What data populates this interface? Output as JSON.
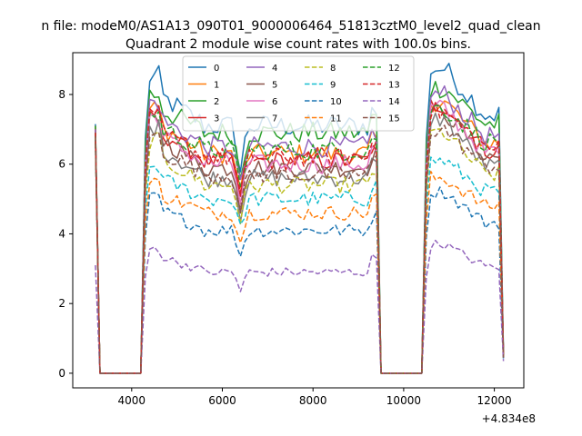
{
  "figure": {
    "suptitle": "n file: modeM0/AS1A13_090T01_9000006464_51813cztM0_level2_quad_clean",
    "offset_label": "+4.834e8"
  },
  "chart_data": {
    "type": "line",
    "title": "Quadrant 2 module wise count rates with 100.0s bins.",
    "xlabel": "",
    "ylabel": "",
    "xlim": [
      2700,
      12650
    ],
    "ylim": [
      -0.42,
      9.2
    ],
    "x_offset": 483400000,
    "xticks": [
      4000,
      6000,
      8000,
      10000,
      12000
    ],
    "xtick_labels": [
      "4000",
      "6000",
      "8000",
      "10000",
      "12000"
    ],
    "yticks": [
      0,
      2,
      4,
      6,
      8
    ],
    "ytick_labels": [
      "0",
      "2",
      "4",
      "6",
      "8"
    ],
    "grid": false,
    "legend": {
      "placement": "upper-center",
      "columns": 4
    },
    "segments": [
      [
        3200,
        12200
      ]
    ],
    "gaps": [
      [
        3300,
        4200
      ],
      [
        9500,
        10400
      ]
    ],
    "series": [
      {
        "name": "0",
        "color": "#1f77b4",
        "dash": "solid",
        "level": 7.1,
        "start": 7.15,
        "peak": 8.75,
        "end": 0.6
      },
      {
        "name": "1",
        "color": "#ff7f0e",
        "dash": "solid",
        "level": 6.3,
        "start": 7.1,
        "peak": 7.8,
        "end": 0.5
      },
      {
        "name": "2",
        "color": "#2ca02c",
        "dash": "solid",
        "level": 6.9,
        "start": 7.1,
        "peak": 8.2,
        "end": 0.55
      },
      {
        "name": "3",
        "color": "#d62728",
        "dash": "solid",
        "level": 6.1,
        "start": 7.0,
        "peak": 7.7,
        "end": 0.5
      },
      {
        "name": "4",
        "color": "#9467bd",
        "dash": "solid",
        "level": 6.5,
        "start": 7.0,
        "peak": 8.0,
        "end": 0.5
      },
      {
        "name": "5",
        "color": "#8c564b",
        "dash": "solid",
        "level": 5.9,
        "start": 6.9,
        "peak": 7.5,
        "end": 0.5
      },
      {
        "name": "6",
        "color": "#e377c2",
        "dash": "solid",
        "level": 6.0,
        "start": 6.9,
        "peak": 7.6,
        "end": 0.5
      },
      {
        "name": "7",
        "color": "#7f7f7f",
        "dash": "solid",
        "level": 5.6,
        "start": 6.8,
        "peak": 7.3,
        "end": 0.45
      },
      {
        "name": "8",
        "color": "#bcbd22",
        "dash": "dashed",
        "level": 5.4,
        "start": 6.8,
        "peak": 6.9,
        "end": 0.45
      },
      {
        "name": "9",
        "color": "#17becf",
        "dash": "dashed",
        "level": 5.0,
        "start": 6.7,
        "peak": 6.1,
        "end": 0.45
      },
      {
        "name": "10",
        "color": "#1f77b4",
        "dash": "dashed",
        "level": 4.1,
        "start": 6.6,
        "peak": 5.2,
        "end": 0.4
      },
      {
        "name": "11",
        "color": "#ff7f0e",
        "dash": "dashed",
        "level": 4.6,
        "start": 6.6,
        "peak": 5.6,
        "end": 0.4
      },
      {
        "name": "12",
        "color": "#2ca02c",
        "dash": "dashed",
        "level": 6.4,
        "start": 6.9,
        "peak": 7.6,
        "end": 0.5
      },
      {
        "name": "13",
        "color": "#d62728",
        "dash": "dashed",
        "level": 6.2,
        "start": 6.9,
        "peak": 7.5,
        "end": 0.5
      },
      {
        "name": "14",
        "color": "#9467bd",
        "dash": "dashed",
        "level": 2.9,
        "start": 3.1,
        "peak": 3.7,
        "end": 0.35
      },
      {
        "name": "15",
        "color": "#8c564b",
        "dash": "dashed",
        "level": 5.7,
        "start": 6.8,
        "peak": 7.0,
        "end": 0.45
      }
    ]
  }
}
